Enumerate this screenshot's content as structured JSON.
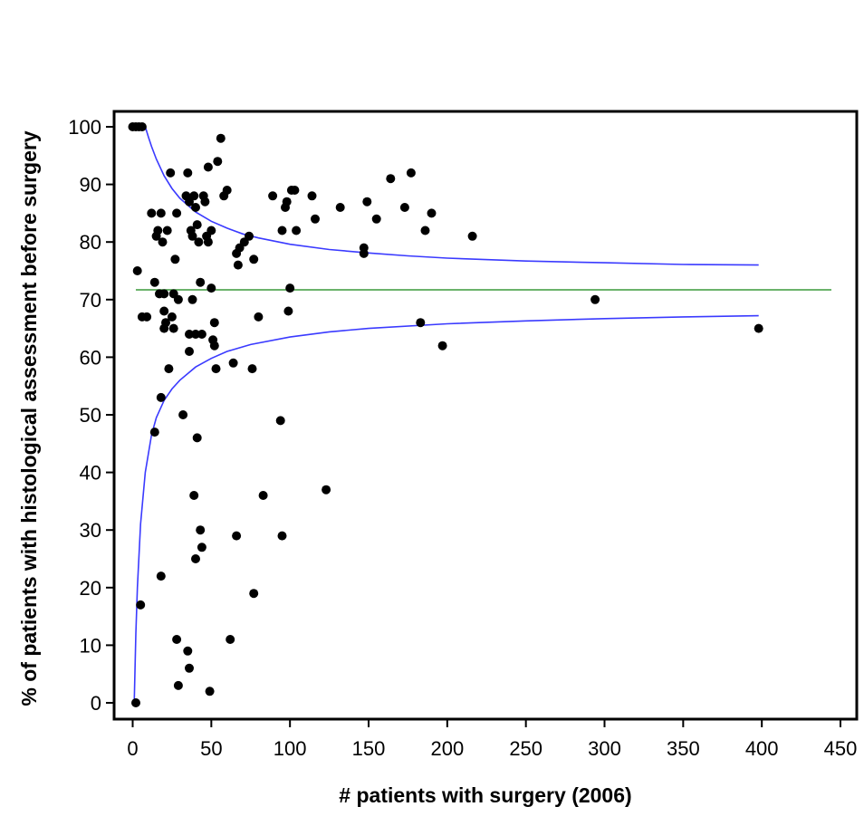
{
  "chart_data": {
    "type": "scatter",
    "title": "",
    "xlabel": "# patients with surgery (2006)",
    "ylabel": "% of patients with histological assessment before surgery",
    "xlim": [
      -12,
      450
    ],
    "ylim": [
      -3,
      102
    ],
    "xticks": [
      0,
      50,
      100,
      150,
      200,
      250,
      300,
      350,
      400,
      450
    ],
    "yticks": [
      0,
      10,
      20,
      30,
      40,
      50,
      60,
      70,
      80,
      90,
      100
    ],
    "grid": false,
    "legend": "none",
    "colors": {
      "points": "#000000",
      "funnel": "#3a3aff",
      "mean": "#3a9a3a",
      "frame": "#000000"
    },
    "reference_line": {
      "y": 71.7
    },
    "funnel": {
      "x_max": 398,
      "upper": [
        [
          8,
          100
        ],
        [
          10,
          98.2
        ],
        [
          12,
          96.6
        ],
        [
          15,
          94.4
        ],
        [
          20,
          91.5
        ],
        [
          25,
          89.3
        ],
        [
          30,
          87.6
        ],
        [
          40,
          85.2
        ],
        [
          50,
          83.6
        ],
        [
          60,
          82.4
        ],
        [
          70,
          81.4
        ],
        [
          80,
          80.7
        ],
        [
          100,
          79.6
        ],
        [
          125,
          78.7
        ],
        [
          150,
          78.1
        ],
        [
          175,
          77.6
        ],
        [
          200,
          77.2
        ],
        [
          250,
          76.7
        ],
        [
          300,
          76.4
        ],
        [
          350,
          76.1
        ],
        [
          398,
          76.0
        ]
      ],
      "lower": [
        [
          1,
          0
        ],
        [
          2,
          12
        ],
        [
          3,
          20
        ],
        [
          5,
          31
        ],
        [
          8,
          40
        ],
        [
          12,
          46.5
        ],
        [
          15,
          49.5
        ],
        [
          20,
          52.5
        ],
        [
          25,
          54.5
        ],
        [
          30,
          56
        ],
        [
          40,
          58.3
        ],
        [
          50,
          59.8
        ],
        [
          60,
          61
        ],
        [
          75,
          62.2
        ],
        [
          100,
          63.5
        ],
        [
          125,
          64.4
        ],
        [
          150,
          65.0
        ],
        [
          200,
          65.8
        ],
        [
          250,
          66.3
        ],
        [
          300,
          66.7
        ],
        [
          350,
          67.0
        ],
        [
          398,
          67.2
        ]
      ]
    },
    "points": [
      [
        0,
        100
      ],
      [
        4,
        100
      ],
      [
        6,
        100
      ],
      [
        2,
        100
      ],
      [
        3,
        75
      ],
      [
        6,
        67
      ],
      [
        9,
        67
      ],
      [
        5,
        17
      ],
      [
        2,
        0
      ],
      [
        12,
        85
      ],
      [
        14,
        73
      ],
      [
        15,
        81
      ],
      [
        16,
        82
      ],
      [
        17,
        71
      ],
      [
        14,
        47
      ],
      [
        18,
        85
      ],
      [
        19,
        80
      ],
      [
        20,
        71
      ],
      [
        20,
        68
      ],
      [
        21,
        66
      ],
      [
        22,
        82
      ],
      [
        20,
        65
      ],
      [
        24,
        92
      ],
      [
        25,
        67
      ],
      [
        26,
        65
      ],
      [
        27,
        77
      ],
      [
        28,
        85
      ],
      [
        26,
        71
      ],
      [
        29,
        70
      ],
      [
        18,
        53
      ],
      [
        23,
        58
      ],
      [
        18,
        22
      ],
      [
        28,
        11
      ],
      [
        29,
        3
      ],
      [
        32,
        50
      ],
      [
        34,
        88
      ],
      [
        35,
        92
      ],
      [
        36,
        87
      ],
      [
        37,
        82
      ],
      [
        38,
        81
      ],
      [
        38,
        70
      ],
      [
        36,
        64
      ],
      [
        36,
        61
      ],
      [
        35,
        9
      ],
      [
        36,
        6
      ],
      [
        39,
        88
      ],
      [
        40,
        86
      ],
      [
        41,
        83
      ],
      [
        42,
        80
      ],
      [
        40,
        64
      ],
      [
        43,
        73
      ],
      [
        44,
        64
      ],
      [
        45,
        88
      ],
      [
        46,
        87
      ],
      [
        47,
        81
      ],
      [
        48,
        80
      ],
      [
        41,
        46
      ],
      [
        39,
        36
      ],
      [
        43,
        30
      ],
      [
        44,
        27
      ],
      [
        40,
        25
      ],
      [
        48,
        93
      ],
      [
        50,
        82
      ],
      [
        50,
        72
      ],
      [
        51,
        63
      ],
      [
        52,
        62
      ],
      [
        53,
        58
      ],
      [
        52,
        66
      ],
      [
        54,
        94
      ],
      [
        56,
        98
      ],
      [
        58,
        88
      ],
      [
        60,
        89
      ],
      [
        62,
        11
      ],
      [
        64,
        59
      ],
      [
        66,
        78
      ],
      [
        67,
        76
      ],
      [
        68,
        79
      ],
      [
        71,
        80
      ],
      [
        74,
        81
      ],
      [
        76,
        58
      ],
      [
        77,
        77
      ],
      [
        66,
        29
      ],
      [
        49,
        2
      ],
      [
        77,
        19
      ],
      [
        80,
        67
      ],
      [
        83,
        36
      ],
      [
        89,
        88
      ],
      [
        94,
        49
      ],
      [
        95,
        29
      ],
      [
        95,
        82
      ],
      [
        97,
        86
      ],
      [
        98,
        87
      ],
      [
        99,
        68
      ],
      [
        100,
        72
      ],
      [
        101,
        89
      ],
      [
        103,
        89
      ],
      [
        104,
        82
      ],
      [
        114,
        88
      ],
      [
        116,
        84
      ],
      [
        123,
        37
      ],
      [
        132,
        86
      ],
      [
        147,
        79
      ],
      [
        147,
        78
      ],
      [
        149,
        87
      ],
      [
        155,
        84
      ],
      [
        164,
        91
      ],
      [
        173,
        86
      ],
      [
        177,
        92
      ],
      [
        183,
        66
      ],
      [
        186,
        82
      ],
      [
        190,
        85
      ],
      [
        197,
        62
      ],
      [
        216,
        81
      ],
      [
        294,
        70
      ],
      [
        398,
        65
      ]
    ]
  }
}
